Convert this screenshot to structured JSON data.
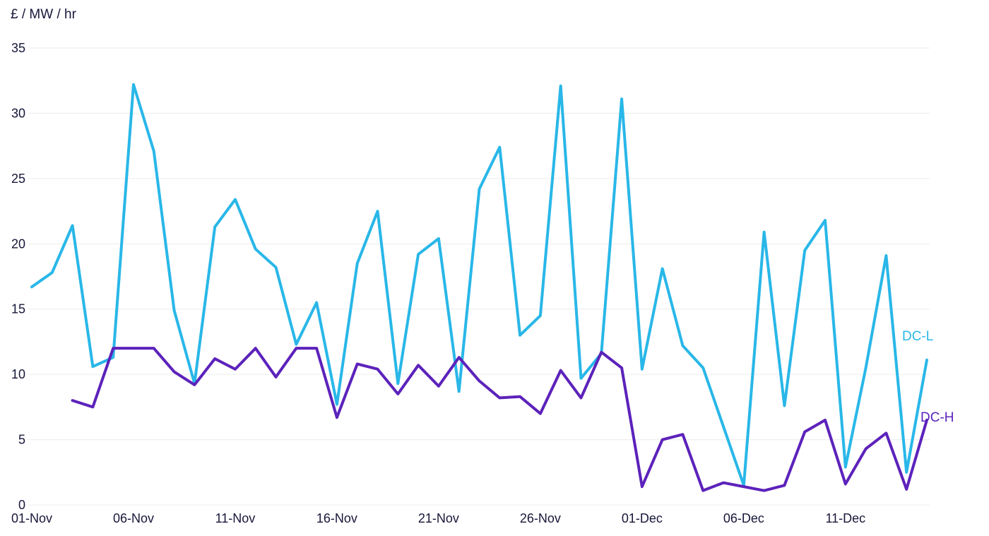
{
  "chart_data": {
    "type": "line",
    "title": "",
    "ylabel": "£ / MW / hr",
    "xlabel": "",
    "ylim": [
      0,
      35
    ],
    "yticks": [
      0,
      5,
      10,
      15,
      20,
      25,
      30,
      35
    ],
    "x_range": [
      0,
      44
    ],
    "xticks": [
      {
        "pos": 0,
        "label": "01-Nov"
      },
      {
        "pos": 5,
        "label": "06-Nov"
      },
      {
        "pos": 10,
        "label": "11-Nov"
      },
      {
        "pos": 15,
        "label": "16-Nov"
      },
      {
        "pos": 20,
        "label": "21-Nov"
      },
      {
        "pos": 25,
        "label": "26-Nov"
      },
      {
        "pos": 30,
        "label": "01-Dec"
      },
      {
        "pos": 35,
        "label": "06-Dec"
      },
      {
        "pos": 40,
        "label": "11-Dec"
      }
    ],
    "grid": true,
    "grid_color": "#ececec",
    "text_color": "#17173a",
    "legend_position": "end-of-line",
    "series": [
      {
        "name": "DC-L",
        "color": "#29B7E8",
        "x_start": 0,
        "values": [
          16.7,
          17.8,
          21.4,
          10.6,
          11.3,
          32.2,
          27.1,
          14.9,
          9.3,
          21.3,
          23.4,
          19.6,
          18.2,
          12.3,
          15.5,
          7.7,
          18.5,
          22.5,
          9.3,
          19.2,
          20.4,
          8.7,
          24.2,
          27.4,
          13.0,
          14.5,
          32.1,
          9.7,
          11.6,
          31.1,
          10.4,
          18.1,
          12.2,
          10.5,
          6.0,
          1.5,
          20.9,
          7.6,
          19.5,
          21.8,
          2.9,
          10.5,
          19.1,
          2.5,
          11.1
        ]
      },
      {
        "name": "DC-H",
        "color": "#5C22BB",
        "x_start": 2,
        "values": [
          8.0,
          7.5,
          12.0,
          12.0,
          12.0,
          10.2,
          9.2,
          11.2,
          10.4,
          12.0,
          9.8,
          12.0,
          12.0,
          6.7,
          10.8,
          10.4,
          8.5,
          10.7,
          9.1,
          11.3,
          9.5,
          8.2,
          8.3,
          7.0,
          10.3,
          8.2,
          11.7,
          10.5,
          1.4,
          5.0,
          5.4,
          1.1,
          1.7,
          1.4,
          1.1,
          1.5,
          5.6,
          6.5,
          1.6,
          4.3,
          5.5,
          1.2,
          6.5
        ]
      }
    ]
  }
}
